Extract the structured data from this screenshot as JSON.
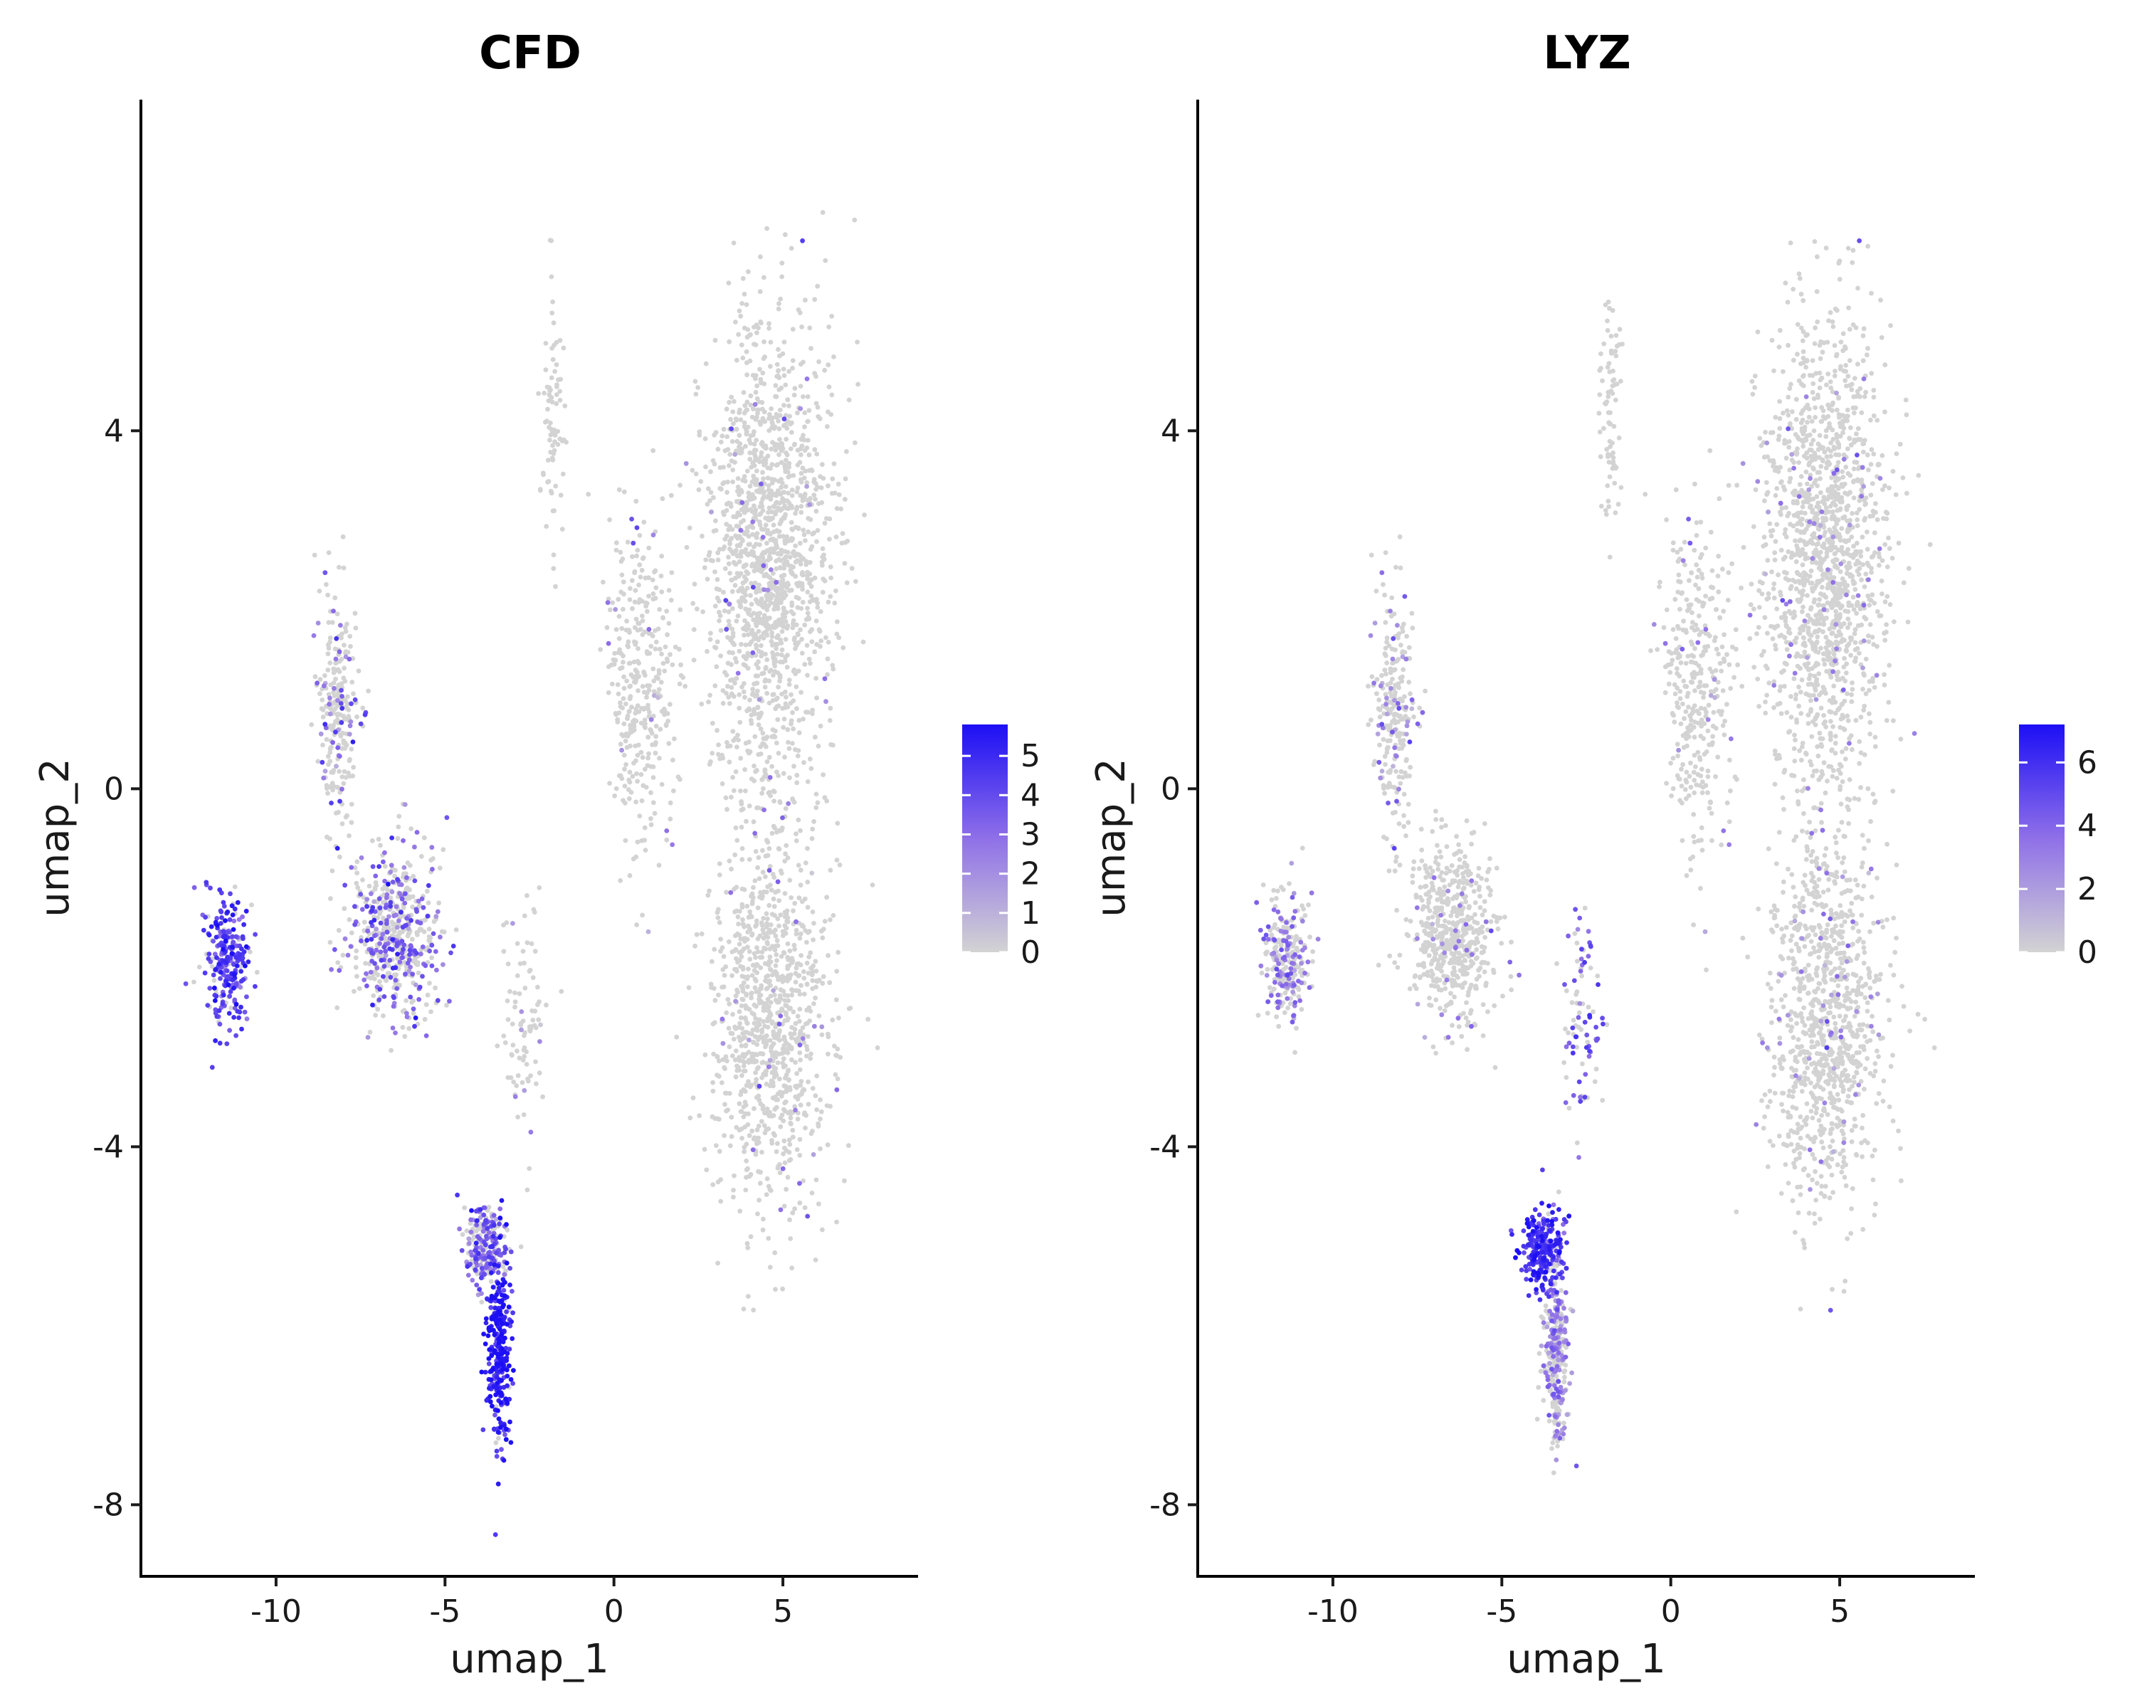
{
  "chart_data": [
    {
      "type": "scatter",
      "title": "CFD",
      "xlabel": "umap_1",
      "ylabel": "umap_2",
      "xlim": [
        -14,
        9
      ],
      "ylim": [
        -8.8,
        7.7
      ],
      "xticks": [
        -10,
        -5,
        0,
        5
      ],
      "yticks": [
        -8,
        -4,
        0,
        4
      ],
      "color_low": "#d3d3d3",
      "color_high": "#1c0ff5",
      "colorbar": {
        "ticks": [
          0,
          1,
          2,
          3,
          4,
          5
        ],
        "max": 5.8,
        "placement": "right"
      },
      "grid": false,
      "clusters": [
        {
          "name": "large-right-upper",
          "x": 4.6,
          "y": 2.6,
          "sx": 1.6,
          "sy": 2.2,
          "n": 1500,
          "expr_frac": 0.02,
          "expr_level": 2.5
        },
        {
          "name": "large-right-lower",
          "x": 4.6,
          "y": -2.6,
          "sx": 1.4,
          "sy": 1.8,
          "n": 1000,
          "expr_frac": 0.03,
          "expr_level": 2.5
        },
        {
          "name": "mid-bridge",
          "x": 0.8,
          "y": 1.2,
          "sx": 0.8,
          "sy": 1.5,
          "n": 350,
          "expr_frac": 0.04,
          "expr_level": 2.5
        },
        {
          "name": "thin-strand",
          "x": -1.8,
          "y": 4.2,
          "sx": 0.3,
          "sy": 1.2,
          "n": 80,
          "expr_frac": 0.0,
          "expr_level": 0
        },
        {
          "name": "left-upper-arm",
          "x": -8.2,
          "y": 0.8,
          "sx": 0.5,
          "sy": 1.2,
          "n": 250,
          "expr_frac": 0.15,
          "expr_level": 3
        },
        {
          "name": "left-mid",
          "x": -6.5,
          "y": -1.6,
          "sx": 1.1,
          "sy": 0.8,
          "n": 550,
          "expr_frac": 0.35,
          "expr_level": 3.5
        },
        {
          "name": "left-tip",
          "x": -11.4,
          "y": -1.9,
          "sx": 0.6,
          "sy": 0.6,
          "n": 250,
          "expr_frac": 0.85,
          "expr_level": 4.2
        },
        {
          "name": "bottom-stem",
          "x": -3.4,
          "y": -6.3,
          "sx": 0.3,
          "sy": 0.9,
          "n": 300,
          "expr_frac": 0.95,
          "expr_level": 5.2
        },
        {
          "name": "bottom-head",
          "x": -3.8,
          "y": -5.1,
          "sx": 0.5,
          "sy": 0.4,
          "n": 250,
          "expr_frac": 0.6,
          "expr_level": 3.3
        },
        {
          "name": "connector",
          "x": -2.6,
          "y": -2.5,
          "sx": 0.5,
          "sy": 1.2,
          "n": 90,
          "expr_frac": 0.05,
          "expr_level": 2
        }
      ]
    },
    {
      "type": "scatter",
      "title": "LYZ",
      "xlabel": "umap_1",
      "ylabel": "umap_2",
      "xlim": [
        -14,
        9
      ],
      "ylim": [
        -8.8,
        7.7
      ],
      "xticks": [
        -10,
        -5,
        0,
        5
      ],
      "yticks": [
        -8,
        -4,
        0,
        4
      ],
      "color_low": "#d3d3d3",
      "color_high": "#1c0ff5",
      "colorbar": {
        "ticks": [
          0,
          2,
          4,
          6
        ],
        "max": 7.2,
        "placement": "right"
      },
      "grid": false,
      "clusters": [
        {
          "name": "large-right-upper",
          "x": 4.6,
          "y": 2.6,
          "sx": 1.6,
          "sy": 2.2,
          "n": 1500,
          "expr_frac": 0.03,
          "expr_level": 3
        },
        {
          "name": "large-right-lower",
          "x": 4.6,
          "y": -2.6,
          "sx": 1.4,
          "sy": 1.8,
          "n": 1000,
          "expr_frac": 0.06,
          "expr_level": 3
        },
        {
          "name": "mid-bridge",
          "x": 0.8,
          "y": 1.2,
          "sx": 0.8,
          "sy": 1.5,
          "n": 350,
          "expr_frac": 0.05,
          "expr_level": 3
        },
        {
          "name": "thin-strand",
          "x": -1.8,
          "y": 4.2,
          "sx": 0.3,
          "sy": 1.2,
          "n": 80,
          "expr_frac": 0.02,
          "expr_level": 2
        },
        {
          "name": "left-upper-arm",
          "x": -8.2,
          "y": 0.8,
          "sx": 0.5,
          "sy": 1.2,
          "n": 250,
          "expr_frac": 0.15,
          "expr_level": 3
        },
        {
          "name": "left-mid",
          "x": -6.5,
          "y": -1.6,
          "sx": 1.1,
          "sy": 0.8,
          "n": 550,
          "expr_frac": 0.05,
          "expr_level": 3
        },
        {
          "name": "left-tip",
          "x": -11.4,
          "y": -1.9,
          "sx": 0.6,
          "sy": 0.6,
          "n": 250,
          "expr_frac": 0.4,
          "expr_level": 3.5
        },
        {
          "name": "bottom-stem",
          "x": -3.4,
          "y": -6.3,
          "sx": 0.3,
          "sy": 0.9,
          "n": 300,
          "expr_frac": 0.45,
          "expr_level": 3
        },
        {
          "name": "bottom-head",
          "x": -3.8,
          "y": -5.1,
          "sx": 0.5,
          "sy": 0.4,
          "n": 250,
          "expr_frac": 0.95,
          "expr_level": 5.8
        },
        {
          "name": "connector",
          "x": -2.6,
          "y": -2.5,
          "sx": 0.5,
          "sy": 1.2,
          "n": 90,
          "expr_frac": 0.5,
          "expr_level": 4.5
        }
      ]
    }
  ]
}
